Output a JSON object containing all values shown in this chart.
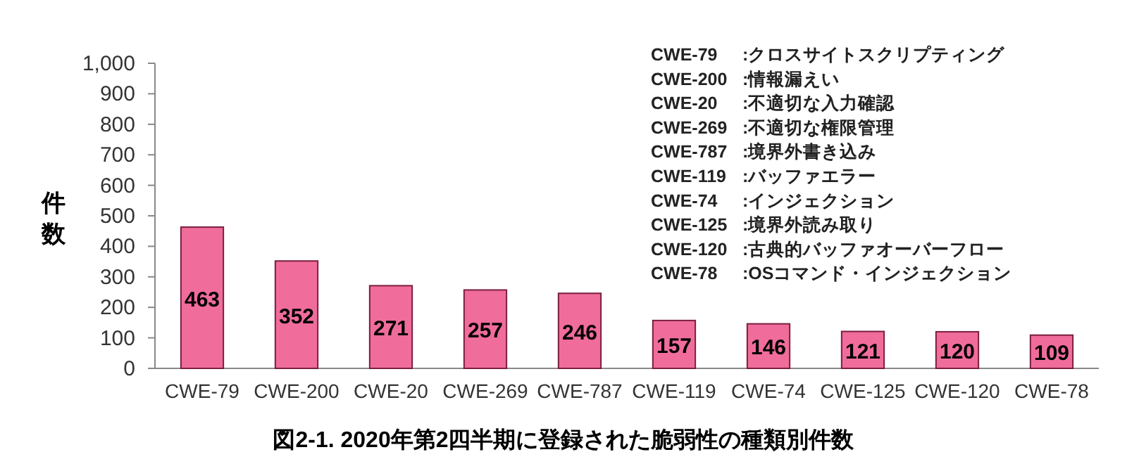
{
  "chart_data": {
    "type": "bar",
    "title": "図2-1. 2020年第2四半期に登録された脆弱性の種類別件数",
    "ylabel": "件数",
    "categories": [
      "CWE-79",
      "CWE-200",
      "CWE-20",
      "CWE-269",
      "CWE-787",
      "CWE-119",
      "CWE-74",
      "CWE-125",
      "CWE-120",
      "CWE-78"
    ],
    "values": [
      463,
      352,
      271,
      257,
      246,
      157,
      146,
      121,
      120,
      109
    ],
    "color": "#f06c9b",
    "ylim": [
      0,
      1000
    ],
    "yticks": [
      0,
      100,
      200,
      300,
      400,
      500,
      600,
      700,
      800,
      900,
      {
        "value": 1000,
        "label": "1,000"
      }
    ],
    "grid": false,
    "data_labels": true,
    "annotations": [
      "CWE-79 :クロスサイトスクリプティング",
      "CWE-200 :情報漏えい",
      "CWE-20 :不適切な入力確認",
      "CWE-269 :不適切な権限管理",
      "CWE-787 :境界外書き込み",
      "CWE-119 :バッファエラー",
      "CWE-74 :インジェクション",
      "CWE-125 :境界外読み取り",
      "CWE-120 :古典的バッファオーバーフロー",
      "CWE-78 :OSコマンド・インジェクション"
    ]
  }
}
